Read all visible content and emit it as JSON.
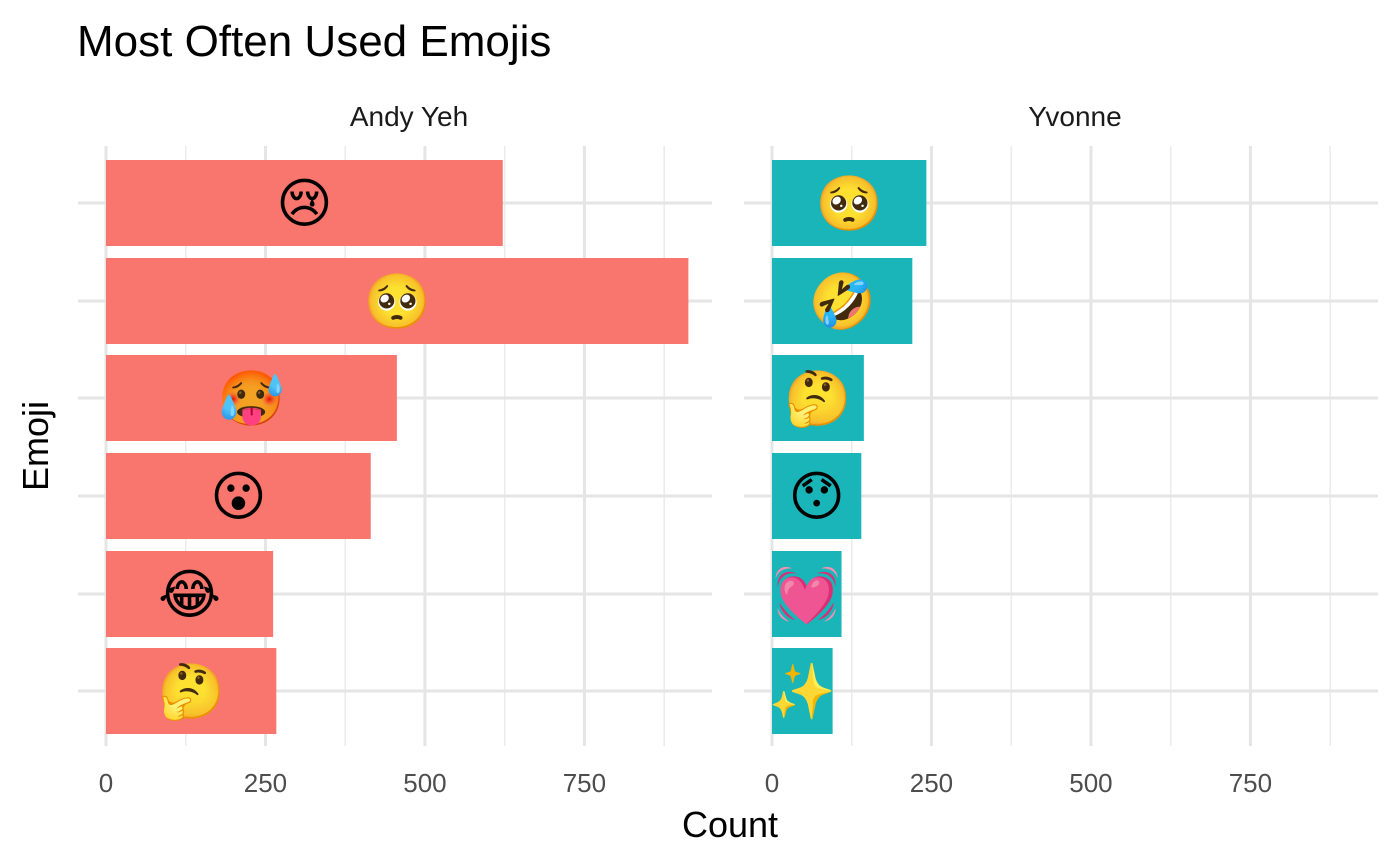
{
  "chart_data": {
    "type": "bar",
    "orientation": "horizontal",
    "title": "Most Often Used Emojis",
    "xlabel": "Count",
    "ylabel": "Emoji",
    "xlim": [
      0,
      950
    ],
    "x_ticks": [
      0,
      250,
      500,
      750
    ],
    "grid": true,
    "legend": "none",
    "panels": [
      {
        "name": "Andy Yeh",
        "color": "#F8766D",
        "bars": [
          {
            "emoji": "😢",
            "icon": "crying-face-icon",
            "value": 622
          },
          {
            "emoji": "🥺",
            "icon": "pleading-face-icon",
            "value": 913
          },
          {
            "emoji": "🥵",
            "icon": "hot-face-icon",
            "value": 456
          },
          {
            "emoji": "😮",
            "icon": "face-with-open-mouth-icon",
            "value": 415
          },
          {
            "emoji": "😂",
            "icon": "face-with-tears-of-joy-icon",
            "value": 262
          },
          {
            "emoji": "🤔",
            "icon": "thinking-face-icon",
            "value": 267
          }
        ]
      },
      {
        "name": "Yvonne",
        "color": "#19B5B8",
        "bars": [
          {
            "emoji": "🥺",
            "icon": "pleading-face-icon",
            "value": 242
          },
          {
            "emoji": "🤣",
            "icon": "rolling-on-floor-laughing-icon",
            "value": 220
          },
          {
            "emoji": "🤔",
            "icon": "thinking-face-icon",
            "value": 144
          },
          {
            "emoji": "😯",
            "icon": "hushed-face-icon",
            "value": 140
          },
          {
            "emoji": "💓",
            "icon": "beating-heart-icon",
            "value": 109
          },
          {
            "emoji": "✨",
            "icon": "sparkles-icon",
            "value": 95
          }
        ]
      }
    ]
  }
}
